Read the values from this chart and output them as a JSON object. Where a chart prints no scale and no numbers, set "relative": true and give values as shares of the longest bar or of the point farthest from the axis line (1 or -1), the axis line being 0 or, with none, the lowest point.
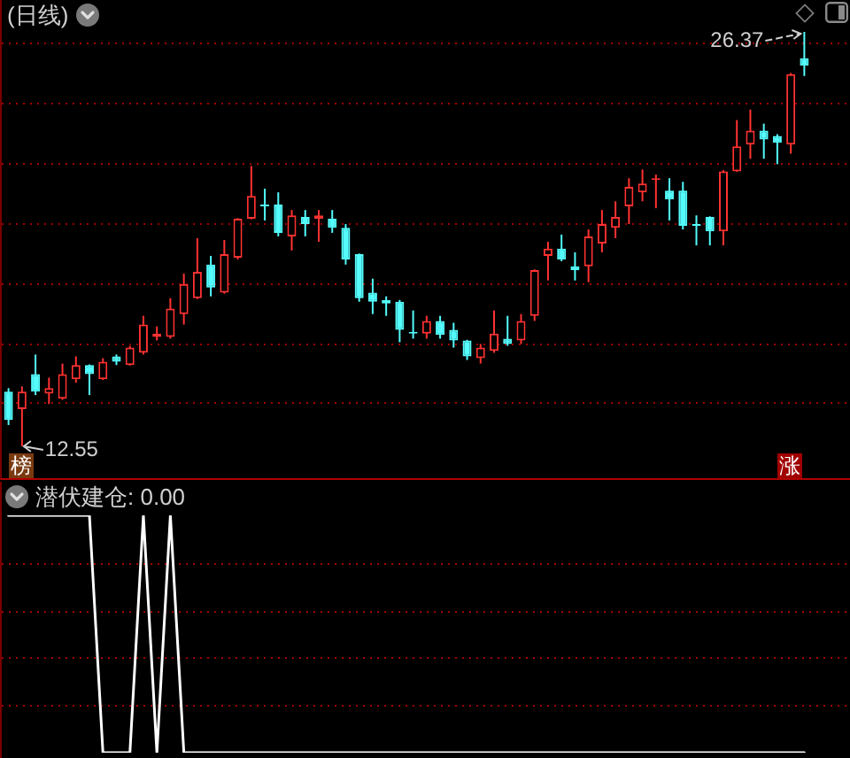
{
  "chart_data": [
    {
      "type": "candlestick",
      "title": "(日线)",
      "categories": [
        null,
        null,
        null,
        null,
        null,
        null,
        null,
        null,
        null,
        null,
        null,
        null,
        null,
        null,
        null,
        null,
        null,
        null,
        null,
        null,
        null,
        null,
        null,
        null,
        null,
        null,
        null,
        null,
        null,
        null,
        null,
        null,
        null,
        null,
        null,
        null,
        null,
        null,
        null,
        null,
        null,
        null,
        null,
        null,
        null,
        null,
        null,
        null,
        null,
        null,
        null,
        null,
        null,
        null,
        null,
        null,
        null,
        null,
        null,
        null
      ],
      "ohlc": [
        [
          14.37,
          14.49,
          13.26,
          13.43
        ],
        [
          13.79,
          14.55,
          12.55,
          14.37
        ],
        [
          14.96,
          15.61,
          14.26,
          14.37
        ],
        [
          14.31,
          14.84,
          13.96,
          14.49
        ],
        [
          14.14,
          15.31,
          14.1,
          14.96
        ],
        [
          14.79,
          15.55,
          14.67,
          15.26
        ],
        [
          15.26,
          15.28,
          14.26,
          14.96
        ],
        [
          14.79,
          15.49,
          14.76,
          15.37
        ],
        [
          15.55,
          15.61,
          15.26,
          15.37
        ],
        [
          15.26,
          15.9,
          15.24,
          15.84
        ],
        [
          15.67,
          16.9,
          15.61,
          16.61
        ],
        [
          16.2,
          16.55,
          16.08,
          16.31
        ],
        [
          16.2,
          17.49,
          16.14,
          17.14
        ],
        [
          16.96,
          18.31,
          16.61,
          17.96
        ],
        [
          17.49,
          19.49,
          17.46,
          18.37
        ],
        [
          18.61,
          18.9,
          17.55,
          17.84
        ],
        [
          17.67,
          19.43,
          17.64,
          18.96
        ],
        [
          18.84,
          20.16,
          18.78,
          20.14
        ],
        [
          20.14,
          21.9,
          20.12,
          20.9
        ],
        [
          20.61,
          21.14,
          20.08,
          20.55
        ],
        [
          20.61,
          21.02,
          19.55,
          19.67
        ],
        [
          19.55,
          20.43,
          19.08,
          20.25
        ],
        [
          20.2,
          20.43,
          19.55,
          19.96
        ],
        [
          20.14,
          20.43,
          19.37,
          20.25
        ],
        [
          20.14,
          20.43,
          19.67,
          19.84
        ],
        [
          19.84,
          19.96,
          18.61,
          18.78
        ],
        [
          18.96,
          18.98,
          17.37,
          17.49
        ],
        [
          17.67,
          18.14,
          16.96,
          17.37
        ],
        [
          17.43,
          17.55,
          16.9,
          17.31
        ],
        [
          17.37,
          17.43,
          16.02,
          16.43
        ],
        [
          16.37,
          17.08,
          16.14,
          16.31
        ],
        [
          16.31,
          16.9,
          16.14,
          16.73
        ],
        [
          16.73,
          16.9,
          16.14,
          16.26
        ],
        [
          16.43,
          16.67,
          15.84,
          16.08
        ],
        [
          16.08,
          16.1,
          15.43,
          15.55
        ],
        [
          15.49,
          15.96,
          15.31,
          15.84
        ],
        [
          15.73,
          17.08,
          15.67,
          16.31
        ],
        [
          16.14,
          16.9,
          15.9,
          15.96
        ],
        [
          16.08,
          16.96,
          15.96,
          16.73
        ],
        [
          16.9,
          18.45,
          16.73,
          18.43
        ],
        [
          18.9,
          19.37,
          18.08,
          19.14
        ],
        [
          19.14,
          19.61,
          18.72,
          18.78
        ],
        [
          18.55,
          19.02,
          18.08,
          18.43
        ],
        [
          18.55,
          19.78,
          18.02,
          19.55
        ],
        [
          19.31,
          20.43,
          19.02,
          19.96
        ],
        [
          19.84,
          20.72,
          19.49,
          20.2
        ],
        [
          20.55,
          21.49,
          19.96,
          21.2
        ],
        [
          21.02,
          21.78,
          20.72,
          21.31
        ],
        [
          21.43,
          21.61,
          20.49,
          21.49
        ],
        [
          21.08,
          21.49,
          20.08,
          20.78
        ],
        [
          21.08,
          21.37,
          19.78,
          19.9
        ],
        [
          19.96,
          20.25,
          19.25,
          19.9
        ],
        [
          20.2,
          20.22,
          19.25,
          19.72
        ],
        [
          19.72,
          21.76,
          19.25,
          21.72
        ],
        [
          21.72,
          23.43,
          21.7,
          22.55
        ],
        [
          22.61,
          23.78,
          22.14,
          23.08
        ],
        [
          23.08,
          23.31,
          22.14,
          22.78
        ],
        [
          22.9,
          22.96,
          21.96,
          22.67
        ],
        [
          22.61,
          25.0,
          22.31,
          24.96
        ],
        [
          25.49,
          26.37,
          24.9,
          25.25
        ]
      ],
      "colors": [
        "#54fcfc",
        "#ff3232",
        "#54fcfc",
        "#ff3232",
        "#ff3232",
        "#ff3232",
        "#54fcfc",
        "#ff3232",
        "#54fcfc",
        "#ff3232",
        "#ff3232",
        "#ff3232",
        "#ff3232",
        "#ff3232",
        "#ff3232",
        "#54fcfc",
        "#ff3232",
        "#ff3232",
        "#ff3232",
        "#54fcfc",
        "#54fcfc",
        "#ff3232",
        "#54fcfc",
        "#ff3232",
        "#54fcfc",
        "#54fcfc",
        "#54fcfc",
        "#54fcfc",
        "#54fcfc",
        "#54fcfc",
        "#54fcfc",
        "#ff3232",
        "#54fcfc",
        "#54fcfc",
        "#54fcfc",
        "#ff3232",
        "#ff3232",
        "#54fcfc",
        "#ff3232",
        "#ff3232",
        "#ff3232",
        "#54fcfc",
        "#54fcfc",
        "#ff3232",
        "#ff3232",
        "#ff3232",
        "#ff3232",
        "#ff3232",
        "#ff3232",
        "#54fcfc",
        "#54fcfc",
        "#54fcfc",
        "#54fcfc",
        "#ff3232",
        "#ff3232",
        "#ff3232",
        "#54fcfc",
        "#54fcfc",
        "#ff3232",
        "#54fcfc"
      ],
      "annotations": [
        "26.37",
        "12.55",
        "榜",
        "涨"
      ],
      "yticks": [
        {
          "value": 14,
          "label": null
        },
        {
          "value": 16,
          "label": null
        },
        {
          "value": 18,
          "label": null
        },
        {
          "value": 20,
          "label": null
        },
        {
          "value": 22,
          "label": null
        },
        {
          "value": 24,
          "label": null
        },
        {
          "value": 26,
          "label": null
        }
      ],
      "grid": true
    },
    {
      "type": "line",
      "title": "潜伏建仓: 0.00",
      "categories": [
        null,
        null,
        null,
        null,
        null,
        null,
        null,
        null,
        null,
        null,
        null,
        null,
        null,
        null,
        null,
        null,
        null,
        null,
        null,
        null,
        null,
        null,
        null,
        null,
        null,
        null,
        null,
        null,
        null,
        null,
        null,
        null,
        null,
        null,
        null,
        null,
        null,
        null,
        null,
        null,
        null,
        null,
        null,
        null,
        null,
        null,
        null,
        null,
        null,
        null,
        null,
        null,
        null,
        null,
        null,
        null,
        null,
        null,
        null,
        null
      ],
      "series": [
        {
          "color": "#ffffff",
          "values": [
            1,
            1,
            1,
            1,
            1,
            1,
            1,
            0,
            0,
            0,
            1,
            0,
            1,
            0,
            0,
            0,
            0,
            0,
            0,
            0,
            0,
            0,
            0,
            0,
            0,
            0,
            0,
            0,
            0,
            0,
            0,
            0,
            0,
            0,
            0,
            0,
            0,
            0,
            0,
            0,
            0,
            0,
            0,
            0,
            0,
            0,
            0,
            0,
            0,
            0,
            0,
            0,
            0,
            0,
            0,
            0,
            0,
            0,
            0,
            0
          ]
        }
      ],
      "ref_lines": [
        {
          "axis": "y",
          "value": 0.8,
          "color": "#a00000",
          "line_style": "dotted"
        },
        {
          "axis": "y",
          "value": 0.6,
          "color": "#a00000",
          "line_style": "dotted"
        },
        {
          "axis": "y",
          "value": 0.4,
          "color": "#a00000",
          "line_style": "dotted"
        },
        {
          "axis": "y",
          "value": 0.2,
          "color": "#a00000",
          "line_style": "dotted"
        }
      ],
      "relative": true
    }
  ]
}
